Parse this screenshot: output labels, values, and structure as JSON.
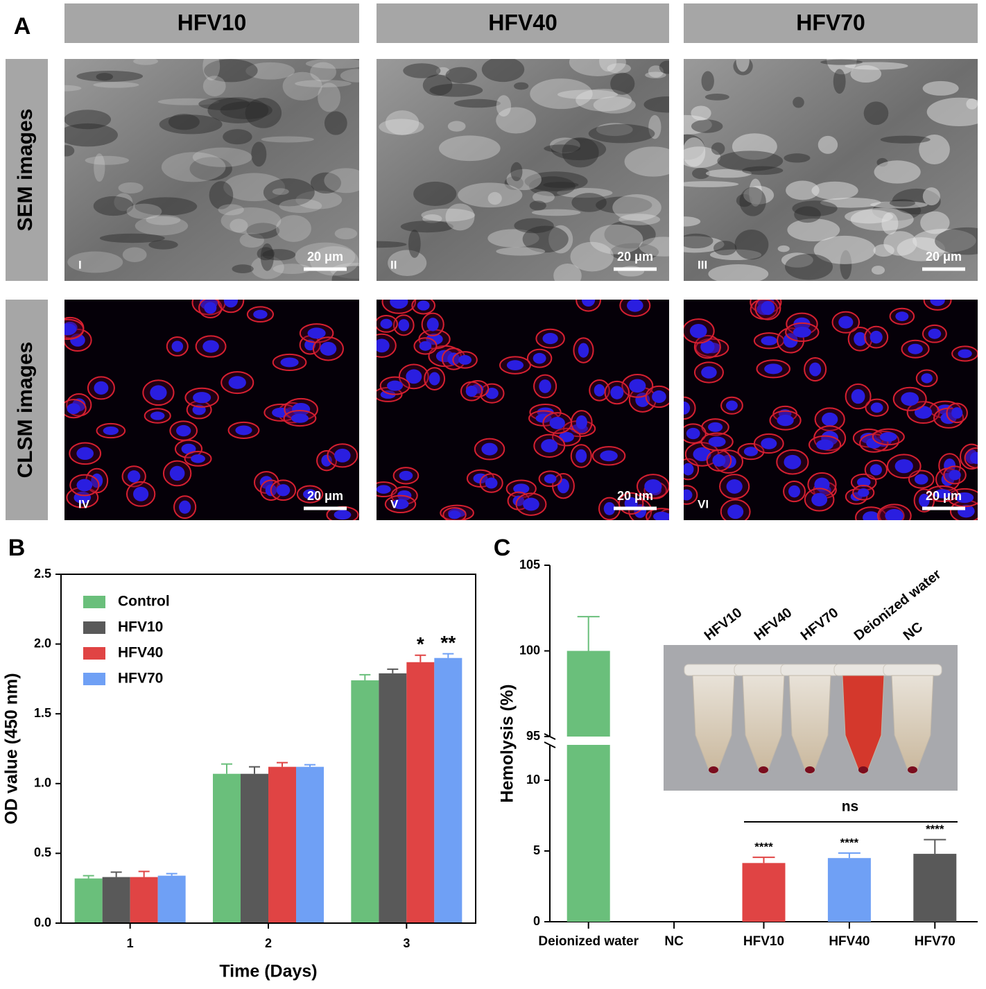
{
  "panel_a": {
    "label": "A",
    "columns": [
      "HFV10",
      "HFV40",
      "HFV70"
    ],
    "rows": [
      "SEM images",
      "CLSM images"
    ],
    "image_labels": [
      "I",
      "II",
      "III",
      "IV",
      "V",
      "VI"
    ],
    "scale_bar": "20 μm"
  },
  "chart_data": [
    {
      "type": "bar",
      "panel": "B",
      "xlabel": "Time (Days)",
      "ylabel": "OD value (450 nm)",
      "categories": [
        "1",
        "2",
        "3"
      ],
      "series": [
        {
          "name": "Control",
          "color": "#6abf7b",
          "values": [
            0.32,
            1.07,
            1.74
          ],
          "errors": [
            0.02,
            0.07,
            0.04
          ],
          "significance": [
            null,
            null,
            null
          ]
        },
        {
          "name": "HFV10",
          "color": "#595959",
          "values": [
            0.33,
            1.07,
            1.79
          ],
          "errors": [
            0.035,
            0.05,
            0.03
          ],
          "significance": [
            null,
            null,
            null
          ]
        },
        {
          "name": "HFV40",
          "color": "#e04444",
          "values": [
            0.33,
            1.12,
            1.87
          ],
          "errors": [
            0.04,
            0.03,
            0.05
          ],
          "significance": [
            null,
            null,
            "*"
          ]
        },
        {
          "name": "HFV70",
          "color": "#6fa0f5",
          "values": [
            0.34,
            1.12,
            1.9
          ],
          "errors": [
            0.015,
            0.015,
            0.03
          ],
          "significance": [
            null,
            null,
            "**"
          ]
        }
      ],
      "ylim": [
        0,
        2.5
      ],
      "yticks": [
        {
          "value": 0,
          "label": "0.0"
        },
        {
          "value": 0.5,
          "label": "0.5"
        },
        {
          "value": 1,
          "label": "1.0"
        },
        {
          "value": 1.5,
          "label": "1.5"
        },
        {
          "value": 2,
          "label": "2.0"
        },
        {
          "value": 2.5,
          "label": "2.5"
        }
      ],
      "legend": "upper-left"
    },
    {
      "type": "broken-bar",
      "panel": "C",
      "ylabel": "Hemolysis (%)",
      "categories": [
        "Deionized water",
        "NC",
        "HFV10",
        "HFV40",
        "HFV70"
      ],
      "values": [
        100,
        0,
        4.15,
        4.5,
        4.8
      ],
      "errors": [
        2,
        null,
        0.4,
        0.35,
        1
      ],
      "colors": [
        "#6abf7b",
        null,
        "#e04444",
        "#6fa0f5",
        "#595959"
      ],
      "significance": [
        null,
        null,
        "****",
        "****",
        "****"
      ],
      "bracket": "ns",
      "ylim_segments": [
        [
          0,
          12.5
        ],
        [
          95,
          105
        ]
      ],
      "yticks": [
        0,
        5,
        10,
        95,
        100,
        105
      ],
      "inset_labels": [
        "HFV10",
        "HFV40",
        "HFV70",
        "Deionized water",
        "NC"
      ]
    }
  ]
}
